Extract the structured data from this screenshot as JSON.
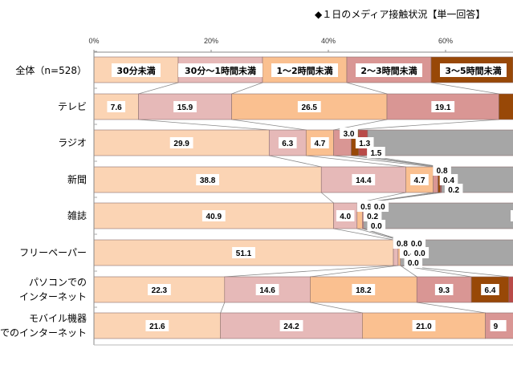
{
  "chart_data": {
    "type": "bar",
    "orientation": "horizontal-stacked-100",
    "title": "◆１日のメディア接触状況【単一回答】",
    "xlim": [
      0,
      100
    ],
    "x_ticks": [
      "0%",
      "20%",
      "40%",
      "60%"
    ],
    "x_tick_values": [
      0,
      20,
      40,
      60
    ],
    "legend_row": {
      "label": "全体（n=528）",
      "items": [
        "30分未満",
        "30分～1時間未満",
        "1～2時間未満",
        "2～3時間未満",
        "3～5時間未満"
      ]
    },
    "categories": [
      [
        "テレビ"
      ],
      [
        "ラジオ"
      ],
      [
        "新聞"
      ],
      [
        "雑誌"
      ],
      [
        "フリーペーパー"
      ],
      [
        "パソコンでの",
        "インターネット"
      ],
      [
        "モバイル機器",
        "でのインターネット"
      ]
    ],
    "series_colors": [
      "#FBD4B4",
      "#E6B9B8",
      "#FAC090",
      "#D99694",
      "#984807",
      "#B94A48",
      "#A6A6A6"
    ],
    "rows": [
      {
        "values": [
          7.6,
          15.9,
          26.5,
          19.1
        ],
        "labels": [
          "7.6",
          "15.9",
          "26.5",
          "19.1"
        ],
        "tail": [
          4
        ]
      },
      {
        "values": [
          29.9,
          6.3,
          4.7,
          3.0,
          1.3,
          1.5
        ],
        "labels": [
          "29.9",
          "6.3",
          "4.7",
          "3.0",
          "1.3",
          "1.5"
        ],
        "tail": [
          6
        ]
      },
      {
        "values": [
          38.8,
          14.4,
          4.7,
          0.8,
          0.4,
          0.2
        ],
        "labels": [
          "38.8",
          "14.4",
          "4.7",
          "0.8",
          "0.4",
          "0.2"
        ],
        "tail": [
          6
        ]
      },
      {
        "values": [
          40.9,
          4.0,
          0.9,
          0.2,
          0.0,
          0.0
        ],
        "labels": [
          "40.9",
          "4.0",
          "0.9",
          "0.2",
          "0.0",
          "0.0"
        ],
        "tail": [
          6
        ]
      },
      {
        "values": [
          51.1,
          0.8,
          0.4,
          0.0,
          0.0,
          0.0
        ],
        "labels": [
          "51.1",
          "0.8",
          "0.4",
          "0.0",
          "0.0",
          "0.0"
        ],
        "tail": [
          6
        ]
      },
      {
        "values": [
          22.3,
          14.6,
          18.2,
          9.3,
          6.4
        ],
        "labels": [
          "22.3",
          "14.6",
          "18.2",
          "9.3",
          "6.4"
        ],
        "tail": [
          5
        ]
      },
      {
        "values": [
          21.6,
          24.2,
          21.0
        ],
        "labels": [
          "21.6",
          "24.2",
          "21.0"
        ],
        "tail": [
          3
        ],
        "tail_label": "9"
      }
    ]
  }
}
